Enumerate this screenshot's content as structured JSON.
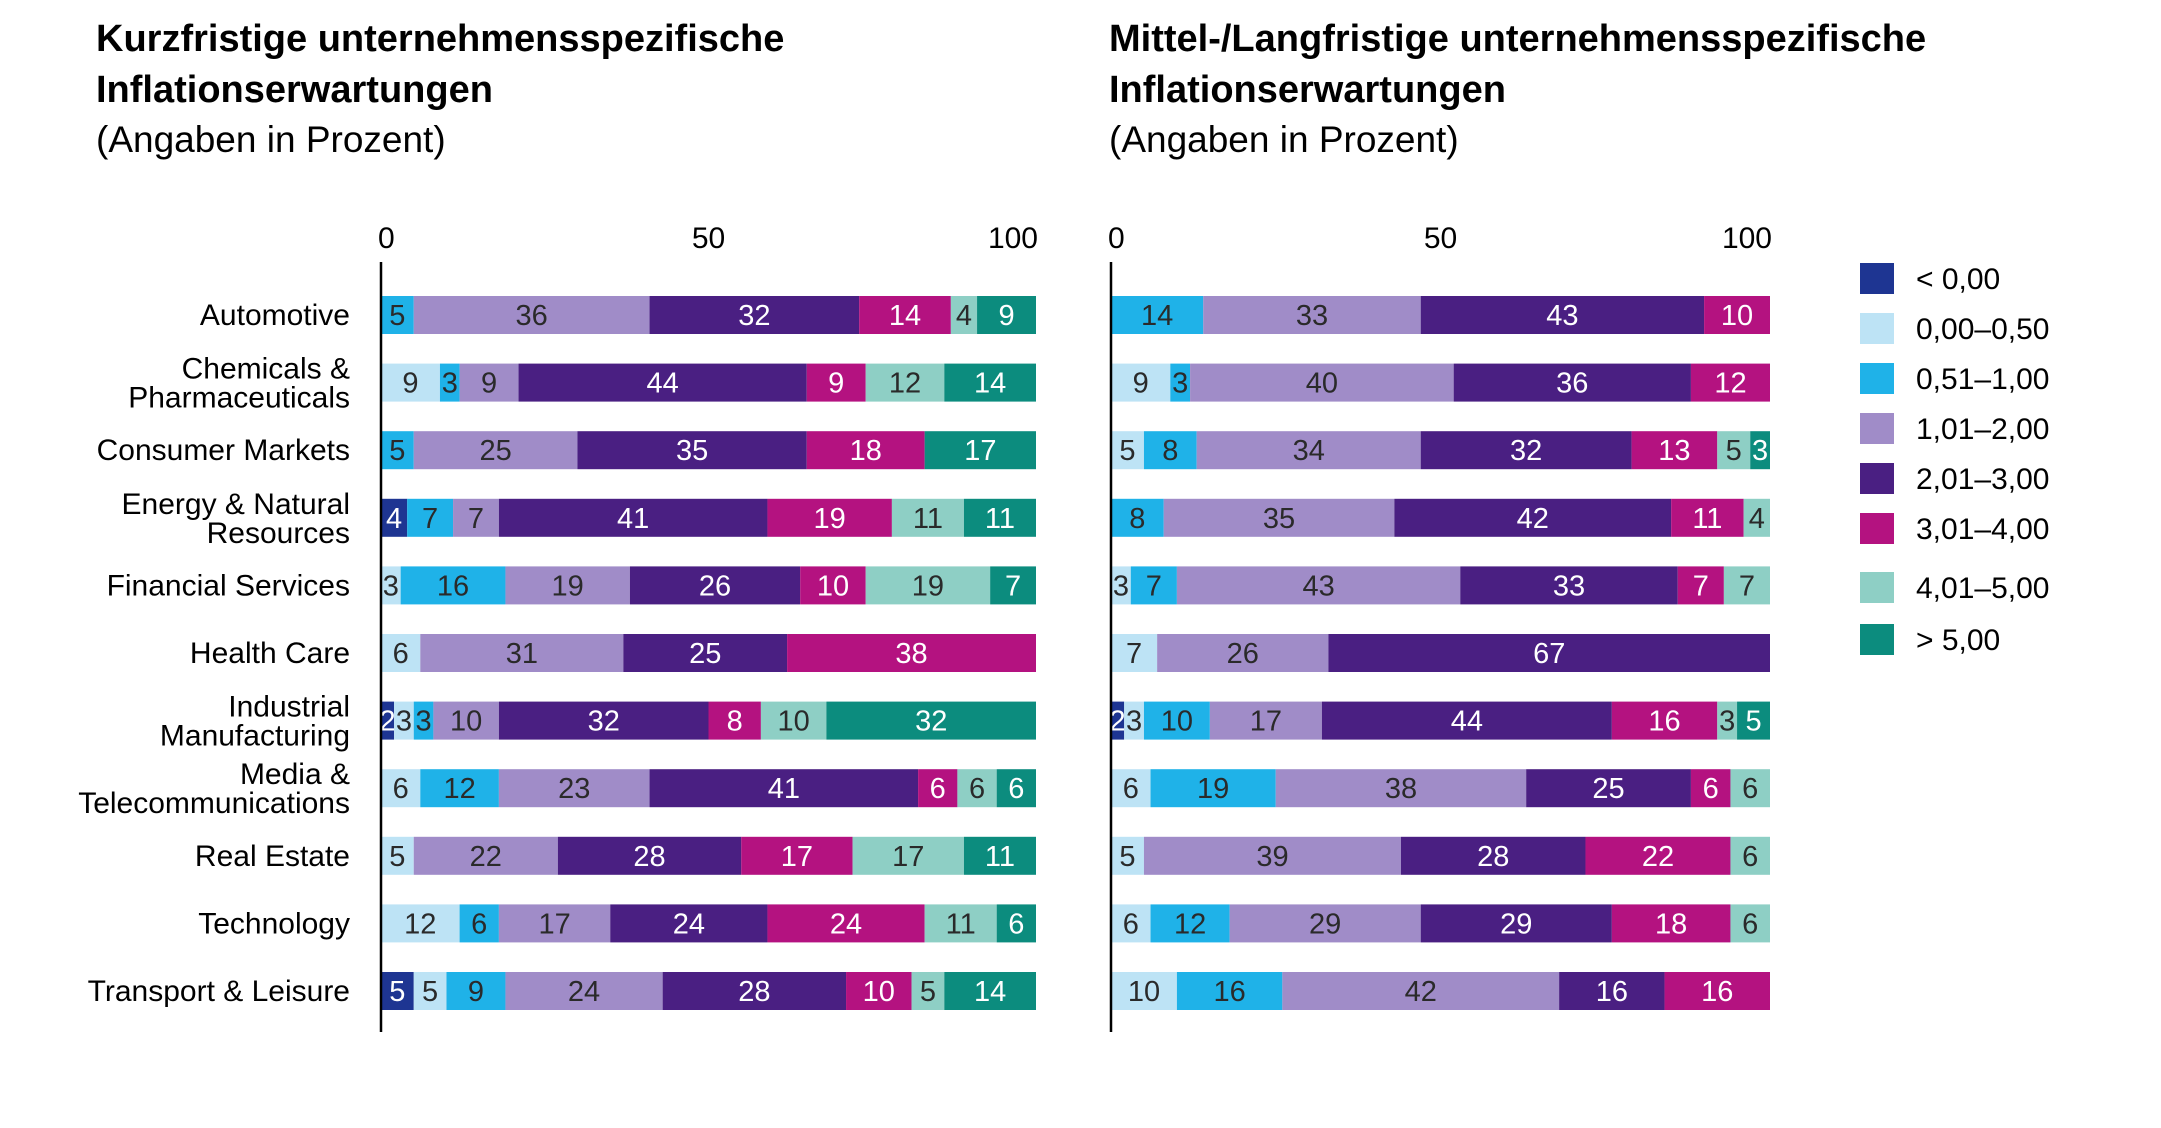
{
  "legend": [
    {
      "label": "< 0,00",
      "color": "#1E3592"
    },
    {
      "label": "0,00–0,50",
      "color": "#BDE3F5"
    },
    {
      "label": "0,51–1,00",
      "color": "#1FB2E8"
    },
    {
      "label": "1,01–2,00",
      "color": "#A08CC8"
    },
    {
      "label": "2,01–3,00",
      "color": "#4A1F82"
    },
    {
      "label": "3,01–4,00",
      "color": "#B41280"
    },
    {
      "label": "4,01–5,00",
      "color": "#8ECFC5"
    },
    {
      "label": "> 5,00",
      "color": "#0C8C7E"
    }
  ],
  "chart_data": [
    {
      "type": "bar",
      "orientation": "horizontal",
      "stacked": true,
      "title_line1": "Kurzfristige unternehmensspezifische",
      "title_line2": "Inflationserwartungen",
      "subtitle": "(Angaben in Prozent)",
      "xlim": [
        0,
        100
      ],
      "ticks": [
        0,
        50,
        100
      ],
      "categories": [
        [
          "Automotive"
        ],
        [
          "Chemicals &",
          "Pharmaceuticals"
        ],
        [
          "Consumer Markets"
        ],
        [
          "Energy & Natural",
          "Resources"
        ],
        [
          "Financial Services"
        ],
        [
          "Health Care"
        ],
        [
          "Industrial",
          "Manufacturing"
        ],
        [
          "Media &",
          "Telecommunications"
        ],
        [
          "Real Estate"
        ],
        [
          "Technology"
        ],
        [
          "Transport & Leisure"
        ]
      ],
      "values": [
        [
          0,
          0,
          5,
          36,
          32,
          14,
          4,
          9
        ],
        [
          0,
          9,
          3,
          9,
          44,
          9,
          12,
          14
        ],
        [
          0,
          0,
          5,
          25,
          35,
          18,
          0,
          17
        ],
        [
          4,
          0,
          7,
          7,
          41,
          19,
          11,
          11
        ],
        [
          0,
          3,
          16,
          19,
          26,
          10,
          19,
          7
        ],
        [
          0,
          6,
          0,
          31,
          25,
          38,
          0,
          0
        ],
        [
          2,
          3,
          3,
          10,
          32,
          8,
          10,
          32
        ],
        [
          0,
          6,
          12,
          23,
          41,
          6,
          6,
          6
        ],
        [
          0,
          5,
          0,
          22,
          28,
          17,
          17,
          11
        ],
        [
          0,
          12,
          6,
          17,
          24,
          24,
          11,
          6
        ],
        [
          5,
          5,
          9,
          24,
          28,
          10,
          5,
          14
        ]
      ]
    },
    {
      "type": "bar",
      "orientation": "horizontal",
      "stacked": true,
      "title_line1": "Mittel-/Langfristige unternehmensspezifische",
      "title_line2": "Inflationserwartungen",
      "subtitle": "(Angaben in Prozent)",
      "xlim": [
        0,
        100
      ],
      "ticks": [
        0,
        50,
        100
      ],
      "values": [
        [
          0,
          0,
          14,
          33,
          43,
          10,
          0,
          0
        ],
        [
          0,
          9,
          3,
          40,
          36,
          12,
          0,
          0
        ],
        [
          0,
          5,
          8,
          34,
          32,
          13,
          5,
          3
        ],
        [
          0,
          0,
          8,
          35,
          42,
          11,
          4,
          0
        ],
        [
          0,
          3,
          7,
          43,
          33,
          7,
          7,
          0
        ],
        [
          0,
          7,
          0,
          26,
          67,
          0,
          0,
          0
        ],
        [
          2,
          3,
          10,
          17,
          44,
          16,
          3,
          5
        ],
        [
          0,
          6,
          19,
          38,
          25,
          6,
          6,
          0
        ],
        [
          0,
          5,
          0,
          39,
          28,
          22,
          6,
          0
        ],
        [
          0,
          6,
          12,
          29,
          29,
          18,
          6,
          0
        ],
        [
          0,
          10,
          16,
          42,
          16,
          16,
          0,
          0
        ]
      ]
    }
  ]
}
